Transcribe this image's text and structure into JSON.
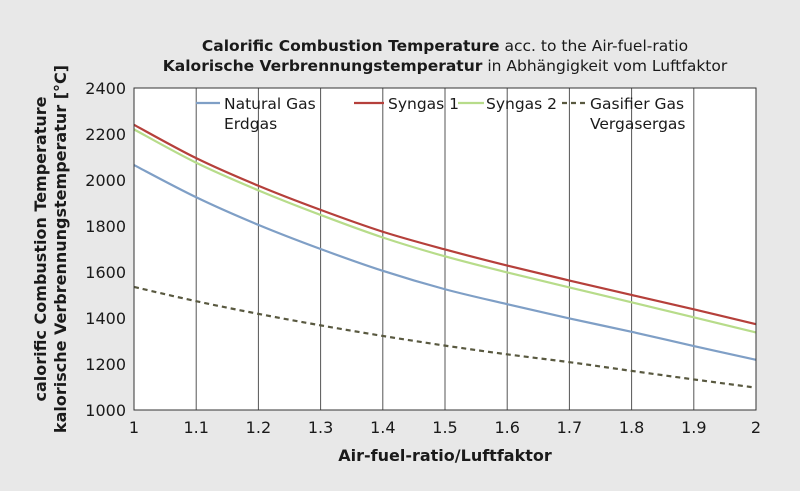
{
  "chart_data": {
    "type": "line",
    "title_line1_bold": "Calorific Combustion Temperature",
    "title_line1_rest": " acc. to the Air-fuel-ratio",
    "title_line2_bold": "Kalorische Verbrennungstemperatur",
    "title_line2_rest": " in Abhängigkeit vom Luftfaktor",
    "xlabel": "Air-fuel-ratio/Luftfaktor",
    "ylabel_line1": "calorific Combustion Temperature",
    "ylabel_line2": "kalorische Verbrennungstemperatur [°C]",
    "xlim": [
      1,
      2
    ],
    "ylim": [
      1000,
      2400
    ],
    "x_ticks": [
      "1",
      "1.1",
      "1.2",
      "1.3",
      "1.4",
      "1.5",
      "1.6",
      "1.7",
      "1.8",
      "1.9",
      "2"
    ],
    "y_ticks": [
      "1000",
      "1200",
      "1400",
      "1600",
      "1800",
      "2000",
      "2200",
      "2400"
    ],
    "grid": "vertical",
    "legend_placement": "top",
    "x": [
      1.0,
      1.1,
      1.2,
      1.3,
      1.4,
      1.5,
      1.6,
      1.7,
      1.8,
      1.9,
      2.0
    ],
    "series": [
      {
        "name": "Natural Gas",
        "name2": "Erdgas",
        "color": "#7f9fc6",
        "dash": "solid",
        "values": [
          2065,
          1925,
          1805,
          1700,
          1605,
          1525,
          1460,
          1398,
          1340,
          1278,
          1218
        ]
      },
      {
        "name": "Syngas 1",
        "name2": "",
        "color": "#b5403b",
        "dash": "solid",
        "values": [
          2240,
          2095,
          1975,
          1870,
          1775,
          1698,
          1628,
          1563,
          1500,
          1438,
          1373
        ]
      },
      {
        "name": "Syngas 2",
        "name2": "",
        "color": "#b7dc8a",
        "dash": "solid",
        "values": [
          2220,
          2075,
          1955,
          1848,
          1750,
          1668,
          1598,
          1533,
          1468,
          1403,
          1337
        ]
      },
      {
        "name": "Gasifier Gas",
        "name2": "Vergasergas",
        "color": "#595940",
        "dash": "dashed",
        "values": [
          1535,
          1473,
          1418,
          1368,
          1322,
          1280,
          1242,
          1208,
          1170,
          1133,
          1097
        ]
      }
    ]
  }
}
